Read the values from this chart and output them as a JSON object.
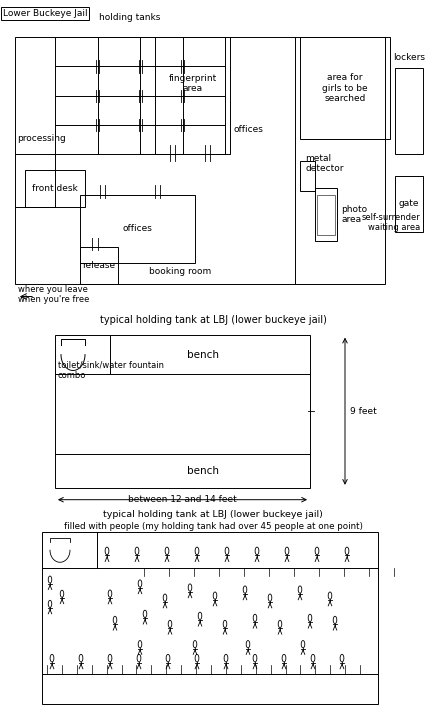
{
  "title_box": "Lower Buckeye Jail",
  "section1_title": "holding tanks",
  "section2_title": "typical holding tank at LBJ (lower buckeye jail)",
  "section3_title1": "typical holding tank at LBJ (lower buckeye jail)",
  "section3_title2": "filled with people (my holding tank had over 45 people at one point)",
  "bg_color": "#ffffff",
  "line_color": "#000000",
  "font_family": "DejaVu Sans",
  "label_fontsize": 6.5,
  "section2_9feet": "9 feet",
  "section2_width": "between 12 and 14 feet",
  "section2_bench": "bench",
  "section2_toilet": "toilet/sink/water fountain\ncombo",
  "label_processing": "processing",
  "label_frontdesk": "front desk",
  "label_fingerprint": "fingerprint\narea",
  "label_offices_top": "offices",
  "label_offices_bot": "offices",
  "label_booking": "booking room",
  "label_metal": "metal\ndetector",
  "label_lockers": "lockers",
  "label_gate": "gate",
  "label_photo": "photo\narea",
  "label_girls": "area for\ngirls to be\nsearched",
  "label_release": "release",
  "label_where": "where you leave\nwhen you're free",
  "label_self": "self-surrender\nwaiting area"
}
